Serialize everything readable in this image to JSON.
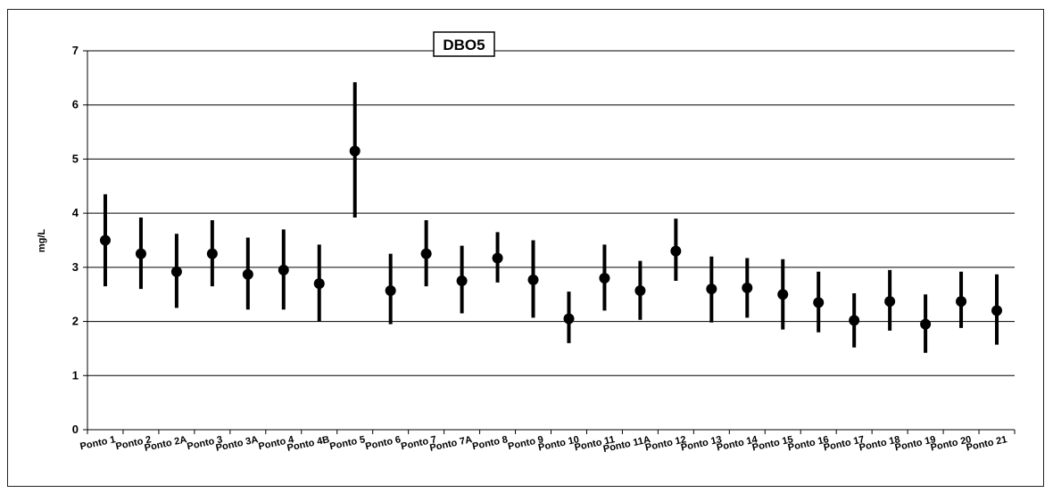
{
  "chart_data": {
    "type": "errorbar",
    "title": "DBO5",
    "xlabel": "",
    "ylabel": "mg/L",
    "ylim": [
      0,
      7
    ],
    "yticks": [
      0,
      1,
      2,
      3,
      4,
      5,
      6,
      7
    ],
    "grid": "horizontal",
    "colors": {
      "marker": "#000000",
      "grid": "#000000"
    },
    "categories": [
      "Ponto 1",
      "Ponto 2",
      "Ponto 2A",
      "Ponto 3",
      "Ponto 3A",
      "Ponto 4",
      "Ponto 4B",
      "Ponto 5",
      "Ponto 6",
      "Ponto 7",
      "Ponto 7A",
      "Ponto 8",
      "Ponto 9",
      "Ponto 10",
      "Ponto 11",
      "Ponto 11A",
      "Ponto 12",
      "Ponto 13",
      "Ponto 14",
      "Ponto 15",
      "Ponto 16",
      "Ponto 17",
      "Ponto 18",
      "Ponto 19",
      "Ponto 20",
      "Ponto 21"
    ],
    "values": [
      3.5,
      3.25,
      2.92,
      3.25,
      2.87,
      2.95,
      2.7,
      5.15,
      2.57,
      3.25,
      2.75,
      3.17,
      2.77,
      2.05,
      2.8,
      2.57,
      3.3,
      2.6,
      2.62,
      2.5,
      2.35,
      2.02,
      2.37,
      1.95,
      2.37,
      2.2
    ],
    "upper": [
      4.35,
      3.92,
      3.62,
      3.87,
      3.55,
      3.7,
      3.42,
      6.42,
      3.25,
      3.87,
      3.4,
      3.65,
      3.5,
      2.55,
      3.42,
      3.12,
      3.9,
      3.2,
      3.17,
      3.15,
      2.92,
      2.52,
      2.95,
      2.5,
      2.92,
      2.87
    ],
    "lower": [
      2.65,
      2.6,
      2.25,
      2.65,
      2.22,
      2.22,
      2.0,
      3.92,
      1.95,
      2.65,
      2.15,
      2.72,
      2.07,
      1.6,
      2.2,
      2.03,
      2.75,
      1.98,
      2.07,
      1.85,
      1.8,
      1.52,
      1.83,
      1.42,
      1.88,
      1.57
    ]
  }
}
